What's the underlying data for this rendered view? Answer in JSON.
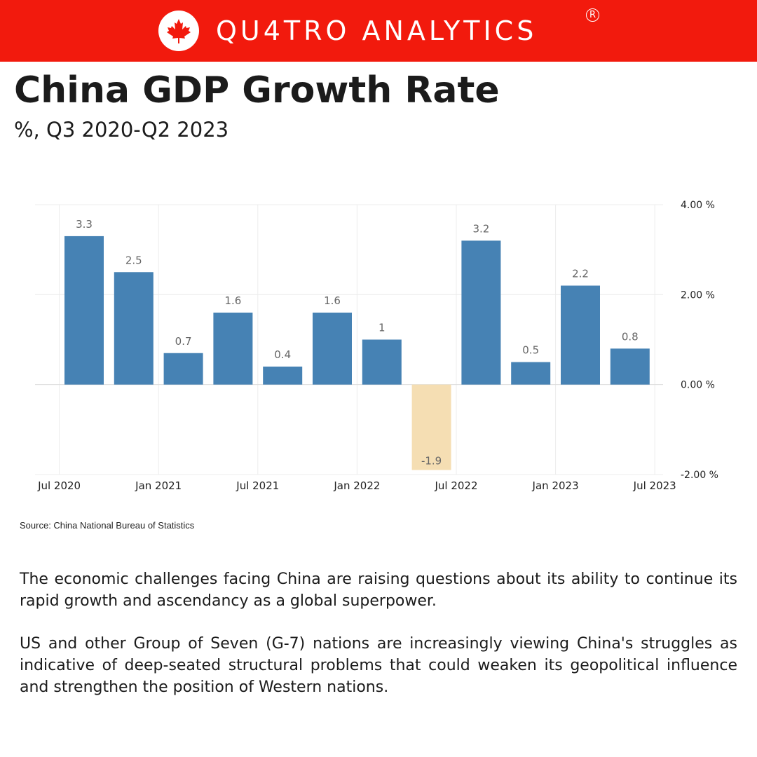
{
  "header": {
    "brand": "QU4TRO ANALYTICS",
    "brand_icon": "maple-leaf-icon",
    "registered_mark": "R",
    "banner_color": "#f21a0d"
  },
  "title": "China GDP Growth Rate",
  "subtitle": "%, Q3 2020-Q2 2023",
  "chart_data": {
    "type": "bar",
    "categories": [
      "Q3 2020",
      "Q4 2020",
      "Q1 2021",
      "Q2 2021",
      "Q3 2021",
      "Q4 2021",
      "Q1 2022",
      "Q2 2022",
      "Q3 2022",
      "Q4 2022",
      "Q1 2023",
      "Q2 2023"
    ],
    "values": [
      3.3,
      2.5,
      0.7,
      1.6,
      0.4,
      1.6,
      1.0,
      -1.9,
      3.2,
      0.5,
      2.2,
      0.8
    ],
    "data_labels": [
      "3.3",
      "2.5",
      "0.7",
      "1.6",
      "0.4",
      "1.6",
      "1",
      "-1.9",
      "3.2",
      "0.5",
      "2.2",
      "0.8"
    ],
    "x_tick_labels": [
      "Jul 2020",
      "Jan 2021",
      "Jul 2021",
      "Jan 2022",
      "Jul 2022",
      "Jan 2023",
      "Jul 2023"
    ],
    "y_tick_values": [
      4,
      2,
      0,
      -2
    ],
    "y_tick_labels": [
      "4.00 %",
      "2.00 %",
      "0.00 %",
      "-2.00 %"
    ],
    "ylim": [
      -2,
      4
    ],
    "y_axis_side": "right",
    "grid": true,
    "positive_color": "#4682b4",
    "negative_color": "#f5deb3",
    "xlabel": "",
    "ylabel": ""
  },
  "source": "Source: China National Bureau of Statistics",
  "paragraphs": [
    "The economic challenges facing China are raising questions about its ability to continue its rapid growth and ascendancy as a global superpower.",
    "US and other Group of Seven (G-7) nations are increasingly viewing China's struggles as indicative of deep-seated structural problems that could weaken its geopolitical influence and strengthen the position of Western nations."
  ]
}
